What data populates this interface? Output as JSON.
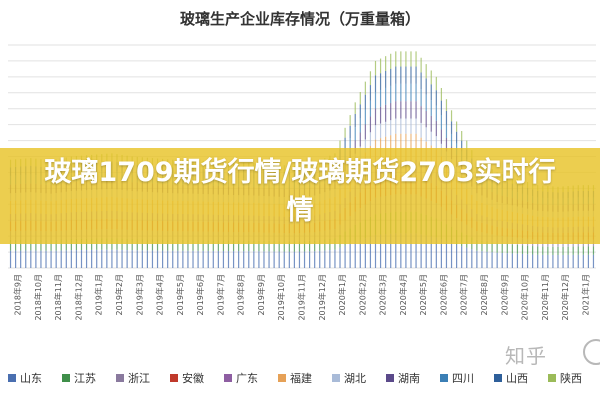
{
  "chart_data": {
    "type": "bar",
    "title": "玻璃生产企业库存情况（万重量箱）",
    "categories": [
      "2018年9月",
      "2018年10月",
      "2018年11月",
      "2018年12月",
      "2019年1月",
      "2019年2月",
      "2019年3月",
      "2019年4月",
      "2019年5月",
      "2019年6月",
      "2019年7月",
      "2019年8月",
      "2019年9月",
      "2019年10月",
      "2019年11月",
      "2019年12月",
      "2020年1月",
      "2020年2月",
      "2020年3月",
      "2020年4月",
      "2020年5月",
      "2020年6月",
      "2020年7月",
      "2020年8月",
      "2020年9月",
      "2020年10月",
      "2020年11月",
      "2020年12月",
      "2021年1月"
    ],
    "stacked": true,
    "series": [
      {
        "name": "山东",
        "color": "#4a6fb0"
      },
      {
        "name": "江苏",
        "color": "#3f8f4a"
      },
      {
        "name": "浙江",
        "color": "#8a7a9e"
      },
      {
        "name": "安徽",
        "color": "#c0392b"
      },
      {
        "name": "广东",
        "color": "#8e5ea2"
      },
      {
        "name": "福建",
        "color": "#e6a157"
      },
      {
        "name": "湖北",
        "color": "#a9bbd8"
      },
      {
        "name": "湖南",
        "color": "#5b4a8a"
      },
      {
        "name": "四川",
        "color": "#3b7fb5"
      },
      {
        "name": "山西",
        "color": "#2e5f9a"
      },
      {
        "name": "陕西",
        "color": "#9bbb59"
      }
    ],
    "totals": [
      3400,
      3450,
      3380,
      3500,
      3550,
      3600,
      3500,
      3450,
      3400,
      3380,
      3350,
      3320,
      3300,
      3250,
      3200,
      3300,
      3600,
      5200,
      6500,
      6800,
      6800,
      6000,
      4600,
      3400,
      3000,
      2800,
      2600,
      2550,
      2600
    ],
    "ylim": [
      0,
      7000
    ],
    "grid": true,
    "legend": "bottom"
  },
  "banner": {
    "title": "玻璃1709期货行情/玻璃期货2703实时行情"
  },
  "watermark": {
    "text": "知乎"
  }
}
